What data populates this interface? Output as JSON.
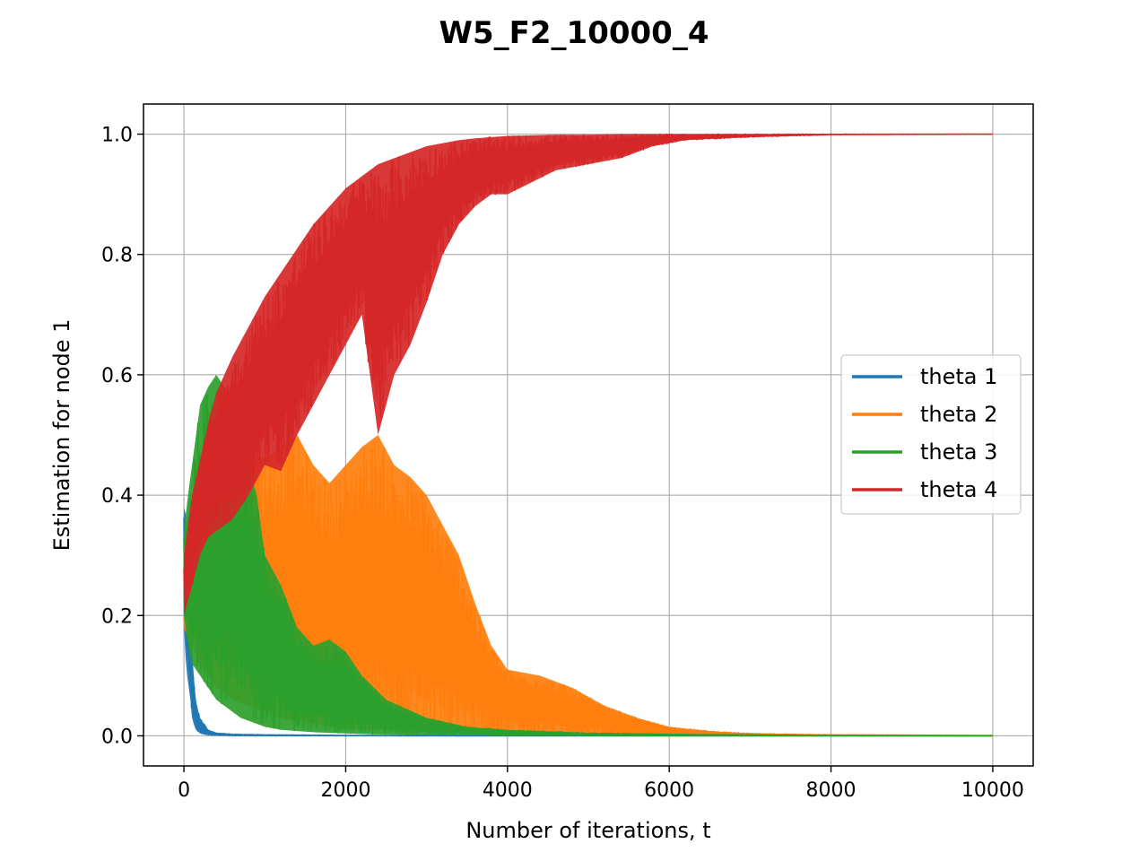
{
  "chart_data": {
    "type": "line",
    "title": "W5_F2_10000_4",
    "xlabel": "Number of iterations, t",
    "ylabel": "Estimation for node 1",
    "xlim": [
      -500,
      10500
    ],
    "ylim": [
      -0.05,
      1.05
    ],
    "xticks": [
      0,
      2000,
      4000,
      6000,
      8000,
      10000
    ],
    "xtick_labels": [
      "0",
      "2000",
      "4000",
      "6000",
      "8000",
      "10000"
    ],
    "yticks": [
      0.0,
      0.2,
      0.4,
      0.6,
      0.8,
      1.0
    ],
    "ytick_labels": [
      "0.0",
      "0.2",
      "0.4",
      "0.6",
      "0.8",
      "1.0"
    ],
    "grid": true,
    "legend_position": "center-right",
    "series": [
      {
        "name": "theta 1",
        "color": "#1f77b4",
        "x": [
          0,
          20,
          40,
          60,
          80,
          100,
          130,
          160,
          200,
          250,
          300,
          400,
          600,
          1000,
          2000,
          4000,
          6000,
          8000,
          10000
        ],
        "upper": [
          0.38,
          0.37,
          0.32,
          0.25,
          0.19,
          0.15,
          0.08,
          0.05,
          0.03,
          0.02,
          0.01,
          0.005,
          0.003,
          0.002,
          0.001,
          0.0,
          0.0,
          0.0,
          0.0
        ],
        "lower": [
          0.18,
          0.13,
          0.1,
          0.08,
          0.06,
          0.03,
          0.015,
          0.008,
          0.004,
          0.002,
          0.001,
          0.001,
          0.0,
          0.0,
          0.0,
          0.0,
          0.0,
          0.0,
          0.0
        ]
      },
      {
        "name": "theta 2",
        "color": "#ff7f0e",
        "x": [
          0,
          100,
          200,
          300,
          400,
          600,
          800,
          1000,
          1200,
          1400,
          1600,
          1800,
          2000,
          2200,
          2400,
          2600,
          2800,
          3000,
          3200,
          3400,
          3600,
          3800,
          4000,
          4400,
          4800,
          5200,
          5600,
          6000,
          6500,
          7000,
          8000,
          10000
        ],
        "upper": [
          0.2,
          0.3,
          0.45,
          0.54,
          0.52,
          0.5,
          0.47,
          0.46,
          0.48,
          0.5,
          0.45,
          0.42,
          0.45,
          0.48,
          0.5,
          0.45,
          0.43,
          0.4,
          0.35,
          0.3,
          0.22,
          0.15,
          0.11,
          0.1,
          0.08,
          0.05,
          0.03,
          0.015,
          0.008,
          0.004,
          0.002,
          0.001
        ],
        "lower": [
          0.18,
          0.15,
          0.12,
          0.1,
          0.08,
          0.06,
          0.05,
          0.04,
          0.03,
          0.025,
          0.02,
          0.015,
          0.012,
          0.01,
          0.01,
          0.01,
          0.01,
          0.01,
          0.01,
          0.008,
          0.006,
          0.005,
          0.004,
          0.003,
          0.002,
          0.002,
          0.001,
          0.001,
          0.0,
          0.0,
          0.0,
          0.0
        ]
      },
      {
        "name": "theta 3",
        "color": "#2ca02c",
        "x": [
          0,
          50,
          100,
          200,
          300,
          400,
          500,
          600,
          700,
          800,
          900,
          1000,
          1200,
          1400,
          1600,
          1800,
          2000,
          2200,
          2500,
          3000,
          3500,
          4000,
          5000,
          6000,
          8000,
          10000
        ],
        "upper": [
          0.34,
          0.4,
          0.45,
          0.55,
          0.58,
          0.6,
          0.58,
          0.56,
          0.52,
          0.45,
          0.4,
          0.3,
          0.25,
          0.18,
          0.15,
          0.16,
          0.14,
          0.1,
          0.06,
          0.03,
          0.015,
          0.01,
          0.005,
          0.003,
          0.001,
          0.0
        ],
        "lower": [
          0.2,
          0.15,
          0.12,
          0.1,
          0.08,
          0.06,
          0.05,
          0.04,
          0.03,
          0.025,
          0.02,
          0.015,
          0.01,
          0.008,
          0.006,
          0.005,
          0.004,
          0.003,
          0.002,
          0.001,
          0.001,
          0.0,
          0.0,
          0.0,
          0.0,
          0.0
        ]
      },
      {
        "name": "theta 4",
        "color": "#d62728",
        "x": [
          0,
          100,
          200,
          300,
          400,
          600,
          800,
          1000,
          1200,
          1400,
          1600,
          1800,
          2000,
          2200,
          2400,
          2600,
          2800,
          3000,
          3200,
          3400,
          3600,
          3800,
          4000,
          4300,
          4600,
          5000,
          5400,
          5800,
          6200,
          7000,
          8000,
          10000
        ],
        "upper": [
          0.3,
          0.4,
          0.46,
          0.52,
          0.57,
          0.63,
          0.68,
          0.73,
          0.77,
          0.81,
          0.85,
          0.88,
          0.91,
          0.93,
          0.95,
          0.96,
          0.97,
          0.98,
          0.985,
          0.99,
          0.993,
          0.995,
          0.997,
          0.998,
          0.999,
          0.999,
          1.0,
          1.0,
          1.0,
          1.0,
          1.0,
          1.0
        ],
        "lower": [
          0.2,
          0.25,
          0.3,
          0.33,
          0.34,
          0.36,
          0.4,
          0.45,
          0.44,
          0.5,
          0.55,
          0.6,
          0.65,
          0.7,
          0.5,
          0.6,
          0.65,
          0.72,
          0.8,
          0.85,
          0.88,
          0.9,
          0.9,
          0.92,
          0.94,
          0.95,
          0.96,
          0.98,
          0.99,
          0.995,
          0.999,
          1.0
        ]
      }
    ]
  }
}
